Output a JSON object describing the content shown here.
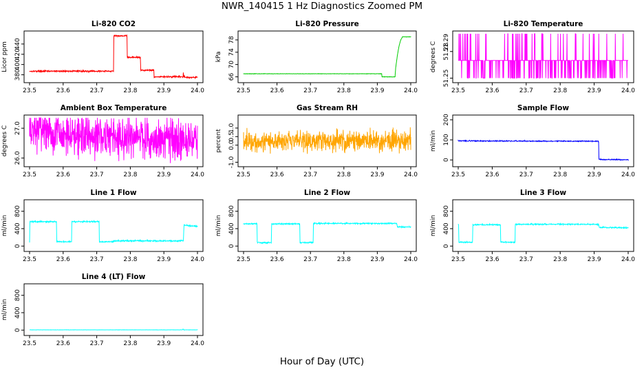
{
  "figure_title": "NWR_140415  1 Hz Diagnostics Zoomed PM",
  "x_axis_title": "Hour of Day (UTC)",
  "chart_data": [
    {
      "id": "co2",
      "type": "line",
      "title": "Li-820 CO2",
      "ylabel": "Licor ppm",
      "color": "#ff0000",
      "xlim": [
        23.5,
        24.0
      ],
      "x_ticks": [
        "23.5",
        "23.6",
        "23.7",
        "23.8",
        "23.9",
        "24.0"
      ],
      "ylim": [
        370,
        460
      ],
      "y_ticks": [
        "380",
        "400",
        "420",
        "440"
      ],
      "series": [
        {
          "name": "CO2",
          "x": [
            23.5,
            23.75,
            23.751,
            23.79,
            23.791,
            23.83,
            23.831,
            23.87,
            23.871,
            23.957,
            23.958,
            23.959,
            23.962,
            23.963,
            24.0
          ],
          "y": [
            387,
            387,
            456,
            456,
            414,
            414,
            389,
            389,
            376,
            376,
            384,
            376,
            376,
            375,
            375
          ]
        }
      ],
      "noise": 0.7
    },
    {
      "id": "pressure",
      "type": "line",
      "title": "Li-820 Pressure",
      "ylabel": "kPa",
      "color": "#00cc00",
      "xlim": [
        23.5,
        24.0
      ],
      "x_ticks": [
        "23.5",
        "23.6",
        "23.7",
        "23.8",
        "23.9",
        "24.0"
      ],
      "ylim": [
        65,
        80
      ],
      "y_ticks": [
        "66",
        "70",
        "74",
        "78"
      ],
      "series": [
        {
          "name": "Pressure",
          "x": [
            23.5,
            23.913,
            23.914,
            23.953,
            23.955,
            23.96,
            23.965,
            23.97,
            23.975,
            24.0
          ],
          "y": [
            67,
            67,
            66,
            66,
            69,
            73,
            76,
            78,
            79,
            79
          ]
        }
      ],
      "noise": 0.03
    },
    {
      "id": "temp",
      "type": "line",
      "title": "Li-820 Temperature",
      "ylabel": "degrees C",
      "color": "#ff00ff",
      "xlim": [
        23.5,
        24.0
      ],
      "x_ticks": [
        "23.5",
        "23.6",
        "23.7",
        "23.8",
        "23.9",
        "24.0"
      ],
      "ylim": [
        51.248,
        51.3
      ],
      "y_ticks": [
        "51.25",
        "51.28"
      ],
      "extra_y_label": "51.29",
      "levels": [
        51.25,
        51.27,
        51.3
      ],
      "series": [
        {
          "name": "Temperature",
          "x": [
            23.5,
            24.0
          ],
          "y": [
            51.27,
            51.27
          ]
        }
      ]
    },
    {
      "id": "ambbox",
      "type": "line",
      "title": "Ambient Box Temperature",
      "ylabel": "degrees C",
      "color": "#ff00ff",
      "xlim": [
        23.5,
        24.0
      ],
      "x_ticks": [
        "23.5",
        "23.6",
        "23.7",
        "23.8",
        "23.9",
        "24.0"
      ],
      "ylim": [
        25.8,
        27.35
      ],
      "y_ticks": [
        "26.0",
        "27.0"
      ],
      "series": [
        {
          "name": "Ambient box",
          "x": [
            23.5,
            23.6,
            23.7,
            23.8,
            23.9,
            24.0
          ],
          "y": [
            26.95,
            26.85,
            26.75,
            26.7,
            26.65,
            26.65
          ]
        }
      ],
      "noise": 0.35
    },
    {
      "id": "rh",
      "type": "line",
      "title": "Gas Stream RH",
      "ylabel": "percent",
      "color": "#ffa500",
      "xlim": [
        23.5,
        24.0
      ],
      "x_ticks": [
        "23.5",
        "23.6",
        "23.7",
        "23.8",
        "23.9",
        "24.0"
      ],
      "ylim": [
        -1.1,
        1.6
      ],
      "y_ticks": [
        "-1.0",
        "0.0",
        "0.5",
        "1.0"
      ],
      "series": [
        {
          "name": "RH",
          "x": [
            23.5,
            24.0
          ],
          "y": [
            0.25,
            0.25
          ]
        }
      ],
      "noise": 0.3
    },
    {
      "id": "sampleflow",
      "type": "line",
      "title": "Sample Flow",
      "ylabel": "ml/min",
      "color": "#0000ff",
      "xlim": [
        23.5,
        24.0
      ],
      "x_ticks": [
        "23.5",
        "23.6",
        "23.7",
        "23.8",
        "23.9",
        "24.0"
      ],
      "ylim": [
        -20,
        210
      ],
      "y_ticks": [
        "0",
        "100",
        "200"
      ],
      "series": [
        {
          "name": "Sample flow",
          "x": [
            23.5,
            23.913,
            23.914,
            23.92,
            24.0
          ],
          "y": [
            95,
            93,
            5,
            2,
            1
          ]
        }
      ],
      "noise": 1.2
    },
    {
      "id": "line1",
      "type": "line",
      "title": "Line 1 Flow",
      "ylabel": "ml/min",
      "color": "#00ffff",
      "xlim": [
        23.5,
        24.0
      ],
      "x_ticks": [
        "23.5",
        "23.6",
        "23.7",
        "23.8",
        "23.9",
        "24.0"
      ],
      "ylim": [
        -60,
        1000
      ],
      "y_ticks": [
        "0",
        "400",
        "800"
      ],
      "series": [
        {
          "name": "Line 1",
          "x": [
            23.5,
            23.501,
            23.502,
            23.58,
            23.581,
            23.625,
            23.626,
            23.707,
            23.708,
            23.75,
            23.751,
            23.958,
            23.96,
            24.0
          ],
          "y": [
            100,
            560,
            560,
            560,
            100,
            100,
            560,
            560,
            100,
            100,
            120,
            120,
            480,
            450
          ]
        }
      ],
      "noise": 8
    },
    {
      "id": "line2",
      "type": "line",
      "title": "Line 2 Flow",
      "ylabel": "ml/min",
      "color": "#00ffff",
      "xlim": [
        23.5,
        24.0
      ],
      "x_ticks": [
        "23.5",
        "23.6",
        "23.7",
        "23.8",
        "23.9",
        "24.0"
      ],
      "ylim": [
        -60,
        1000
      ],
      "y_ticks": [
        "0",
        "400",
        "800"
      ],
      "series": [
        {
          "name": "Line 2",
          "x": [
            23.5,
            23.54,
            23.541,
            23.583,
            23.584,
            23.668,
            23.669,
            23.708,
            23.709,
            23.958,
            23.96,
            24.0
          ],
          "y": [
            510,
            510,
            80,
            80,
            510,
            510,
            80,
            80,
            520,
            520,
            440,
            440
          ]
        }
      ],
      "noise": 7
    },
    {
      "id": "line3",
      "type": "line",
      "title": "Line 3 Flow",
      "ylabel": "ml/min",
      "color": "#00ffff",
      "xlim": [
        23.5,
        24.0
      ],
      "x_ticks": [
        "23.5",
        "23.6",
        "23.7",
        "23.8",
        "23.9",
        "24.0"
      ],
      "ylim": [
        -60,
        1000
      ],
      "y_ticks": [
        "0",
        "400",
        "800"
      ],
      "series": [
        {
          "name": "Line 3",
          "x": [
            23.5,
            23.501,
            23.502,
            23.542,
            23.543,
            23.624,
            23.625,
            23.667,
            23.668,
            23.913,
            23.915,
            24.0
          ],
          "y": [
            500,
            500,
            90,
            90,
            490,
            490,
            90,
            90,
            500,
            500,
            430,
            420
          ]
        }
      ],
      "noise": 7
    },
    {
      "id": "line4",
      "type": "line",
      "title": "Line 4 (LT) Flow",
      "ylabel": "ml/min",
      "color": "#00ffff",
      "xlim": [
        23.5,
        24.0
      ],
      "x_ticks": [
        "23.5",
        "23.6",
        "23.7",
        "23.8",
        "23.9",
        "24.0"
      ],
      "ylim": [
        -60,
        1000
      ],
      "y_ticks": [
        "0",
        "400",
        "800"
      ],
      "series": [
        {
          "name": "Line 4",
          "x": [
            23.5,
            23.955,
            23.957,
            23.96,
            24.0
          ],
          "y": [
            5,
            5,
            25,
            5,
            5
          ]
        }
      ],
      "noise": 1
    }
  ]
}
